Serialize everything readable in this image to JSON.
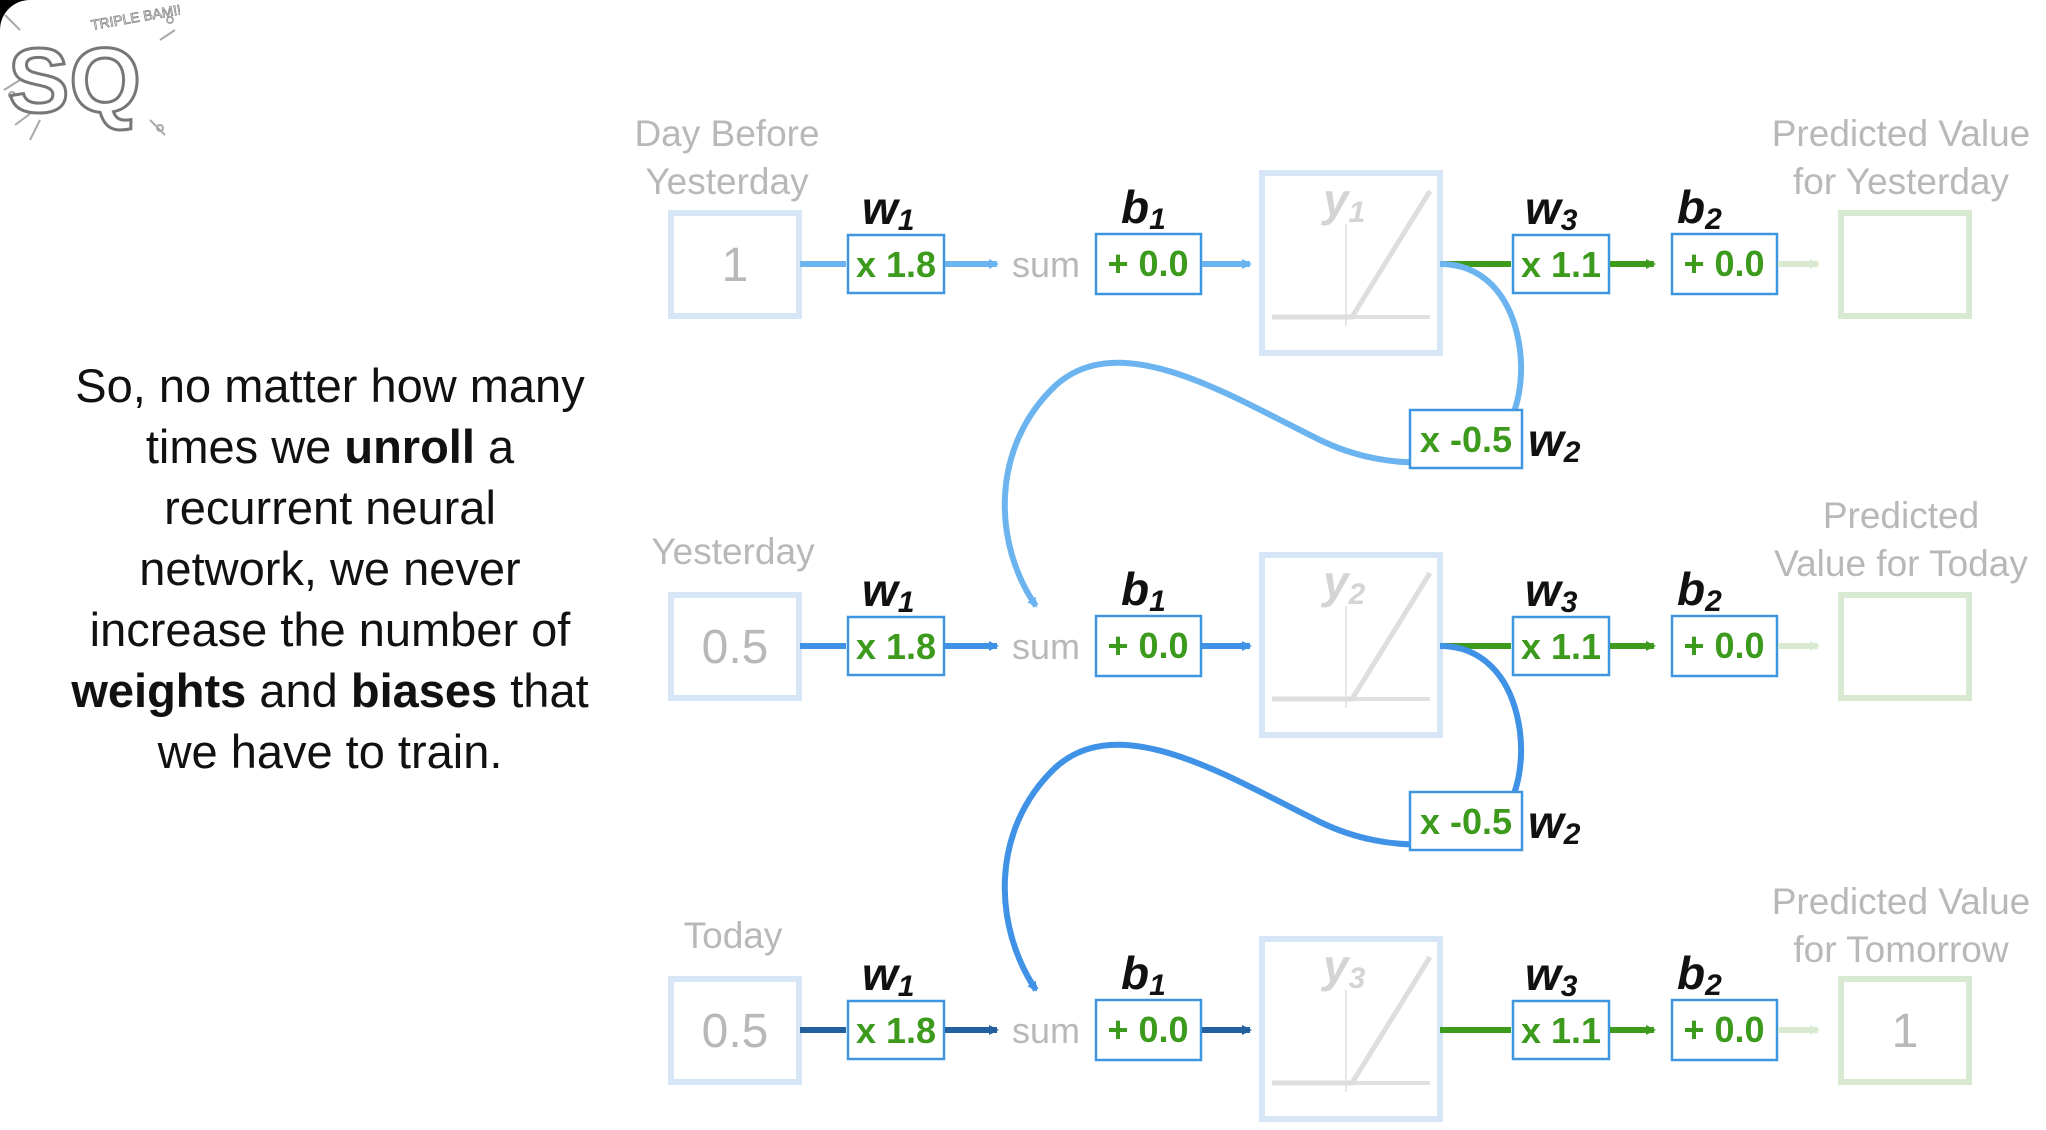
{
  "logo": {
    "main": "SQ",
    "small": "TRIPLE BAM!!"
  },
  "narration": {
    "p1": "So, no matter how many times we",
    "bold1": "unroll",
    "p2": "a recurrent neural network, we never increase the number of",
    "bold2": "weights",
    "p3": "and",
    "bold3": "biases",
    "p4": "that we have to train."
  },
  "diagram": {
    "sum_label": "sum",
    "w1_value": "x 1.8",
    "b1_value": "+ 0.0",
    "w3_value": "x 1.1",
    "b2_value": "+ 0.0",
    "w2_value": "x -0.5",
    "w1_letter": "w",
    "w1_sub": "1",
    "b1_letter": "b",
    "b1_sub": "1",
    "w3_letter": "w",
    "w3_sub": "3",
    "b2_letter": "b",
    "b2_sub": "2",
    "w2_letter": "w",
    "w2_sub": "2",
    "y_letter": "y",
    "rows": [
      {
        "input_label": "Day Before Yesterday",
        "input_line1": "Day Before",
        "input_line2": "Yesterday",
        "input_value": "1",
        "y_sub": "1",
        "output_line1": "Predicted Value",
        "output_line2": "for Yesterday",
        "output_value": ""
      },
      {
        "input_label": "Yesterday",
        "input_value": "0.5",
        "y_sub": "2",
        "output_line1": "Predicted",
        "output_line2": "Value for Today",
        "output_value": ""
      },
      {
        "input_label": "Today",
        "input_value": "0.5",
        "y_sub": "3",
        "output_line1": "Predicted Value",
        "output_line2": "for Tomorrow",
        "output_value": "1"
      }
    ]
  },
  "colors": {
    "row1_arrow": "#6bb4f0",
    "row2_arrow": "#3f92e6",
    "row3_arrow": "#22609e",
    "green": "#3c9a1c",
    "box_border_blue": "#3f96e0",
    "faded_blue": "#d6e6f7",
    "faded_green": "#d8ebd2",
    "faded_text": "#b8b8b8"
  }
}
